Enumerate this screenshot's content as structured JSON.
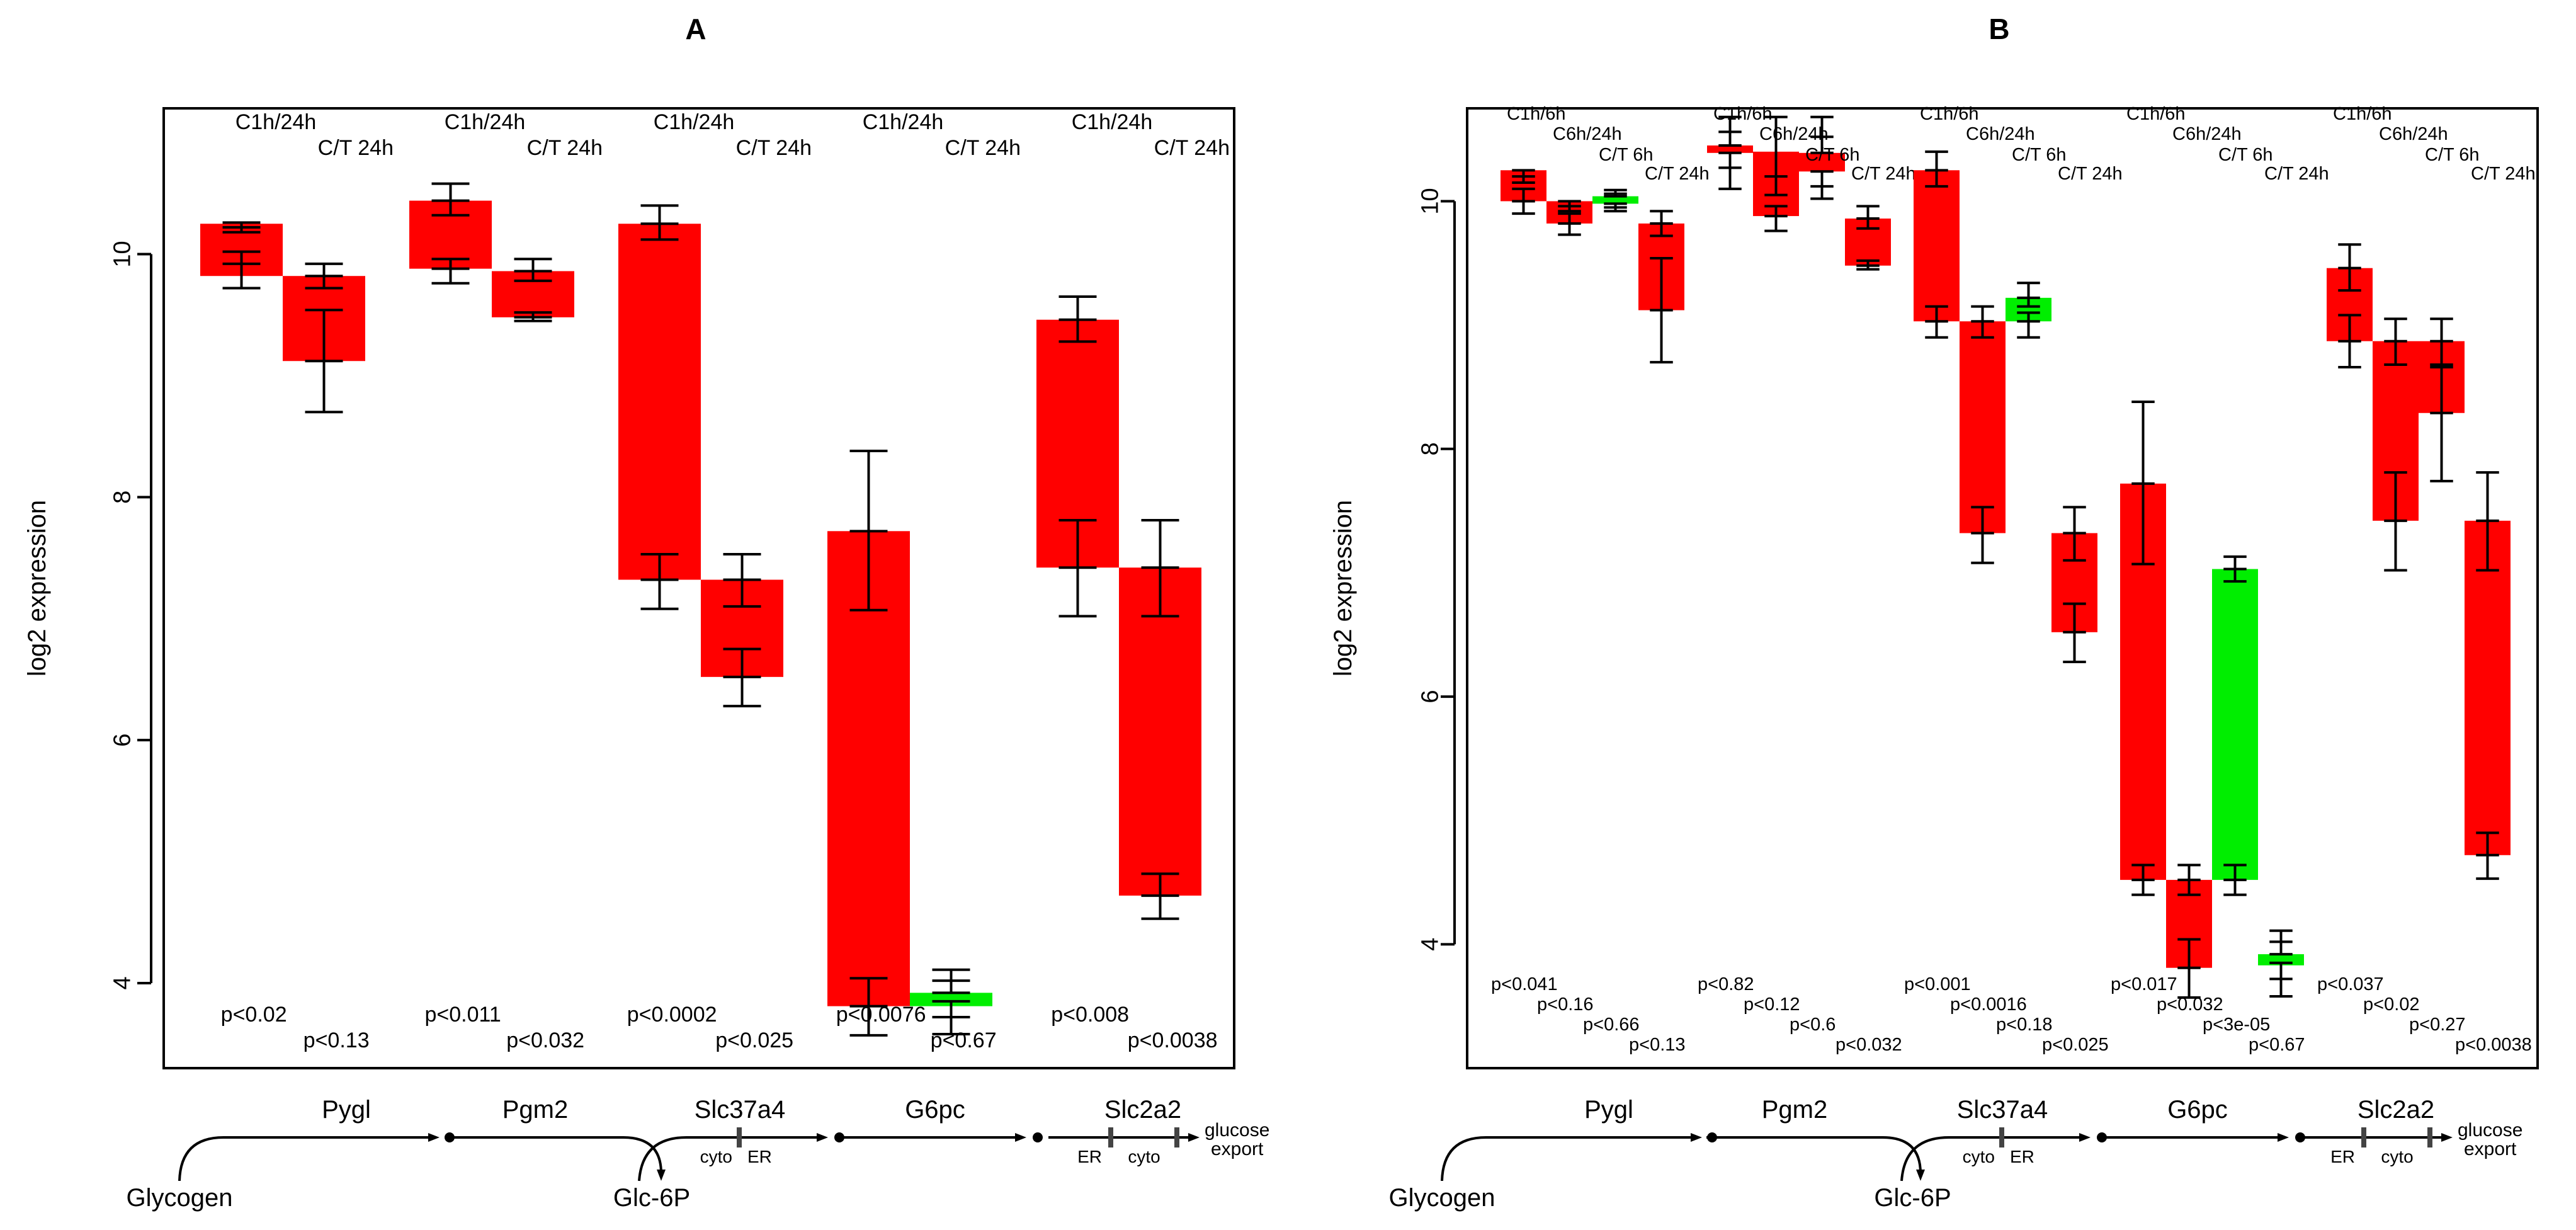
{
  "colors": {
    "up": "#ff0000",
    "down": "#00ee00",
    "line": "#000000"
  },
  "chart_data": [
    {
      "panel": "A",
      "type": "box",
      "ylabel": "log2 expression",
      "ylim": [
        3.3,
        11.2
      ],
      "yticks": [
        4,
        6,
        8,
        10
      ],
      "genes": [
        {
          "name": "Pygl",
          "bars": [
            {
              "label": "C1h/24h",
              "bottom": 9.82,
              "top": 10.25,
              "color": "up",
              "err_low": {
                "lo": 9.72,
                "mid": 9.92,
                "hi": 10.02
              },
              "err_high": {
                "lo": 10.18,
                "mid": 10.22,
                "hi": 10.26
              },
              "p": "p<0.02"
            },
            {
              "label": "C/T 24h",
              "bottom": 9.12,
              "top": 9.82,
              "color": "up",
              "err_low": {
                "lo": 8.7,
                "mid": 9.12,
                "hi": 9.54
              },
              "err_high": {
                "lo": 9.72,
                "mid": 9.82,
                "hi": 9.92
              },
              "p": "p<0.13"
            }
          ]
        },
        {
          "name": "Pgm2",
          "bars": [
            {
              "label": "C1h/24h",
              "bottom": 9.88,
              "top": 10.44,
              "color": "up",
              "err_low": {
                "lo": 9.76,
                "mid": 9.88,
                "hi": 9.96
              },
              "err_high": {
                "lo": 10.32,
                "mid": 10.44,
                "hi": 10.58
              },
              "p": "p<0.011"
            },
            {
              "label": "C/T 24h",
              "bottom": 9.48,
              "top": 9.86,
              "color": "up",
              "err_low": {
                "lo": 9.45,
                "mid": 9.48,
                "hi": 9.52
              },
              "err_high": {
                "lo": 9.78,
                "mid": 9.86,
                "hi": 9.96
              },
              "p": "p<0.032"
            }
          ]
        },
        {
          "name": "Slc37a4",
          "bars": [
            {
              "label": "C1h/24h",
              "bottom": 7.32,
              "top": 10.25,
              "color": "up",
              "err_low": {
                "lo": 7.08,
                "mid": 7.32,
                "hi": 7.53
              },
              "err_high": {
                "lo": 10.12,
                "mid": 10.25,
                "hi": 10.4
              },
              "p": "p<0.0002"
            },
            {
              "label": "C/T 24h",
              "bottom": 6.52,
              "top": 7.32,
              "color": "up",
              "err_low": {
                "lo": 6.28,
                "mid": 6.52,
                "hi": 6.75
              },
              "err_high": {
                "lo": 7.1,
                "mid": 7.32,
                "hi": 7.53
              },
              "p": "p<0.025"
            }
          ]
        },
        {
          "name": "G6pc",
          "bars": [
            {
              "label": "C1h/24h",
              "bottom": 3.81,
              "top": 7.72,
              "color": "up",
              "err_low": {
                "lo": 3.57,
                "mid": 3.81,
                "hi": 4.04
              },
              "err_high": {
                "lo": 7.07,
                "mid": 7.72,
                "hi": 8.38
              },
              "p": "p<0.0076"
            },
            {
              "label": "C/T 24h",
              "bottom": 3.81,
              "top": 3.92,
              "color": "down",
              "err_low": {
                "lo": 3.58,
                "mid": 3.72,
                "hi": 3.85
              },
              "err_high": {
                "lo": 3.92,
                "mid": 4.02,
                "hi": 4.11
              },
              "p": "p<0.67"
            }
          ]
        },
        {
          "name": "Slc2a2",
          "bars": [
            {
              "label": "C1h/24h",
              "bottom": 7.42,
              "top": 9.46,
              "color": "up",
              "err_low": {
                "lo": 7.02,
                "mid": 7.42,
                "hi": 7.81
              },
              "err_high": {
                "lo": 9.28,
                "mid": 9.46,
                "hi": 9.65
              },
              "p": "p<0.008"
            },
            {
              "label": "C/T 24h",
              "bottom": 4.72,
              "top": 7.42,
              "color": "up",
              "err_low": {
                "lo": 4.53,
                "mid": 4.72,
                "hi": 4.9
              },
              "err_high": {
                "lo": 7.02,
                "mid": 7.42,
                "hi": 7.81
              },
              "p": "p<0.0038"
            }
          ]
        }
      ]
    },
    {
      "panel": "B",
      "type": "box",
      "ylabel": "log2 expression",
      "ylim": [
        3.0,
        10.75
      ],
      "yticks": [
        4,
        6,
        8,
        10
      ],
      "genes": [
        {
          "name": "Pygl",
          "bars": [
            {
              "label": "C1h/6h",
              "bottom": 10.0,
              "top": 10.25,
              "color": "up",
              "err_low": {
                "lo": 9.9,
                "mid": 10.0,
                "hi": 10.1
              },
              "err_high": {
                "lo": 10.15,
                "mid": 10.2,
                "hi": 10.25
              },
              "p": "p<0.041"
            },
            {
              "label": "C6h/24h",
              "bottom": 9.82,
              "top": 10.0,
              "color": "up",
              "err_low": {
                "lo": 9.73,
                "mid": 9.82,
                "hi": 9.9
              },
              "err_high": {
                "lo": 9.92,
                "mid": 9.96,
                "hi": 10.0
              },
              "p": "p<0.16"
            },
            {
              "label": "C/T 6h",
              "bottom": 9.98,
              "top": 10.04,
              "color": "down",
              "err_low": {
                "lo": 9.92,
                "mid": 9.95,
                "hi": 9.98
              },
              "err_high": {
                "lo": 10.04,
                "mid": 10.06,
                "hi": 10.09
              },
              "p": "p<0.66"
            },
            {
              "label": "C/T 24h",
              "bottom": 9.12,
              "top": 9.82,
              "color": "up",
              "err_low": {
                "lo": 8.7,
                "mid": 9.12,
                "hi": 9.54
              },
              "err_high": {
                "lo": 9.72,
                "mid": 9.82,
                "hi": 9.92
              },
              "p": "p<0.13"
            }
          ]
        },
        {
          "name": "Pgm2",
          "bars": [
            {
              "label": "C1h/6h",
              "bottom": 10.39,
              "top": 10.45,
              "color": "up",
              "err_low": {
                "lo": 10.1,
                "mid": 10.27,
                "hi": 10.39
              },
              "err_high": {
                "lo": 10.45,
                "mid": 10.56,
                "hi": 10.68
              },
              "p": "p<0.82"
            },
            {
              "label": "C6h/24h",
              "bottom": 9.88,
              "top": 10.4,
              "color": "up",
              "err_low": {
                "lo": 9.76,
                "mid": 9.88,
                "hi": 9.96
              },
              "err_high": {
                "lo": 10.05,
                "mid": 10.2,
                "hi": 10.68
              },
              "p": "p<0.12"
            },
            {
              "label": "C/T 6h",
              "bottom": 10.24,
              "top": 10.39,
              "color": "up",
              "err_low": {
                "lo": 10.02,
                "mid": 10.12,
                "hi": 10.24
              },
              "err_high": {
                "lo": 10.39,
                "mid": 10.52,
                "hi": 10.68
              },
              "p": "p<0.6"
            },
            {
              "label": "C/T 24h",
              "bottom": 9.48,
              "top": 9.86,
              "color": "up",
              "err_low": {
                "lo": 9.45,
                "mid": 9.48,
                "hi": 9.52
              },
              "err_high": {
                "lo": 9.78,
                "mid": 9.86,
                "hi": 9.96
              },
              "p": "p<0.032"
            }
          ]
        },
        {
          "name": "Slc37a4",
          "bars": [
            {
              "label": "C1h/6h",
              "bottom": 9.03,
              "top": 10.25,
              "color": "up",
              "err_low": {
                "lo": 8.9,
                "mid": 9.03,
                "hi": 9.15
              },
              "err_high": {
                "lo": 10.12,
                "mid": 10.25,
                "hi": 10.4
              },
              "p": "p<0.001"
            },
            {
              "label": "C6h/24h",
              "bottom": 7.32,
              "top": 9.03,
              "color": "up",
              "err_low": {
                "lo": 7.08,
                "mid": 7.32,
                "hi": 7.53
              },
              "err_high": {
                "lo": 8.9,
                "mid": 9.03,
                "hi": 9.15
              },
              "p": "p<0.0016"
            },
            {
              "label": "C/T 6h",
              "bottom": 9.03,
              "top": 9.22,
              "color": "down",
              "err_low": {
                "lo": 8.9,
                "mid": 9.03,
                "hi": 9.1
              },
              "err_high": {
                "lo": 9.15,
                "mid": 9.22,
                "hi": 9.34
              },
              "p": "p<0.18"
            },
            {
              "label": "C/T 24h",
              "bottom": 6.52,
              "top": 7.32,
              "color": "up",
              "err_low": {
                "lo": 6.28,
                "mid": 6.52,
                "hi": 6.75
              },
              "err_high": {
                "lo": 7.1,
                "mid": 7.32,
                "hi": 7.53
              },
              "p": "p<0.025"
            }
          ]
        },
        {
          "name": "G6pc",
          "bars": [
            {
              "label": "C1h/6h",
              "bottom": 4.52,
              "top": 7.72,
              "color": "up",
              "err_low": {
                "lo": 4.4,
                "mid": 4.52,
                "hi": 4.64
              },
              "err_high": {
                "lo": 7.07,
                "mid": 7.72,
                "hi": 8.38
              },
              "p": "p<0.017"
            },
            {
              "label": "C6h/24h",
              "bottom": 3.81,
              "top": 4.52,
              "color": "up",
              "err_low": {
                "lo": 3.57,
                "mid": 3.81,
                "hi": 4.04
              },
              "err_high": {
                "lo": 4.4,
                "mid": 4.52,
                "hi": 4.64
              },
              "p": "p<0.032"
            },
            {
              "label": "C/T 6h",
              "bottom": 4.52,
              "top": 7.03,
              "color": "down",
              "err_low": {
                "lo": 4.4,
                "mid": 4.52,
                "hi": 4.64
              },
              "err_high": {
                "lo": 6.93,
                "mid": 7.03,
                "hi": 7.13
              },
              "p": "p<3e-05"
            },
            {
              "label": "C/T 24h",
              "bottom": 3.83,
              "top": 3.92,
              "color": "down",
              "err_low": {
                "lo": 3.58,
                "mid": 3.72,
                "hi": 3.85
              },
              "err_high": {
                "lo": 3.92,
                "mid": 4.02,
                "hi": 4.11
              },
              "p": "p<0.67"
            }
          ]
        },
        {
          "name": "Slc2a2",
          "bars": [
            {
              "label": "C1h/6h",
              "bottom": 8.87,
              "top": 9.46,
              "color": "up",
              "err_low": {
                "lo": 8.66,
                "mid": 8.87,
                "hi": 9.08
              },
              "err_high": {
                "lo": 9.28,
                "mid": 9.46,
                "hi": 9.65
              },
              "p": "p<0.037"
            },
            {
              "label": "C6h/24h",
              "bottom": 7.42,
              "top": 8.87,
              "color": "up",
              "err_low": {
                "lo": 7.02,
                "mid": 7.42,
                "hi": 7.81
              },
              "err_high": {
                "lo": 8.68,
                "mid": 8.87,
                "hi": 9.05
              },
              "p": "p<0.02"
            },
            {
              "label": "C/T 6h",
              "bottom": 8.29,
              "top": 8.87,
              "color": "up",
              "err_low": {
                "lo": 7.74,
                "mid": 8.29,
                "hi": 8.66
              },
              "err_high": {
                "lo": 8.68,
                "mid": 8.87,
                "hi": 9.05
              },
              "p": "p<0.27"
            },
            {
              "label": "C/T 24h",
              "bottom": 4.72,
              "top": 7.42,
              "color": "up",
              "err_low": {
                "lo": 4.53,
                "mid": 4.72,
                "hi": 4.9
              },
              "err_high": {
                "lo": 7.02,
                "mid": 7.42,
                "hi": 7.81
              },
              "p": "p<0.0038"
            }
          ]
        }
      ]
    }
  ],
  "pathway": {
    "start": "Glycogen",
    "intermediate": "Glc-6P",
    "slc37a4_compartments": [
      "cyto",
      "ER"
    ],
    "slc2a2_compartments": [
      "ER",
      "cyto"
    ],
    "export_lines": [
      "glucose",
      "export"
    ]
  }
}
